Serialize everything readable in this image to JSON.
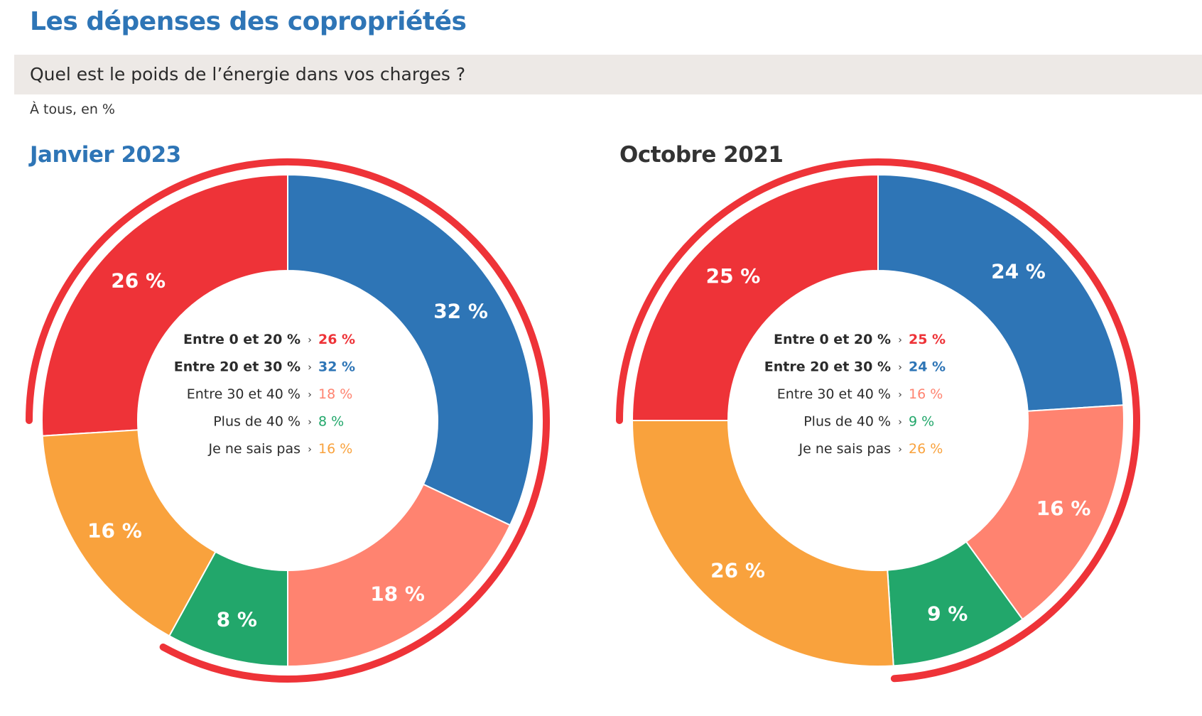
{
  "page": {
    "title": "Les dépenses des copropriétés",
    "question": "Quel est le poids de l’énergie dans vos charges ?",
    "base_note": "À tous, en %"
  },
  "colors": {
    "accent_blue": "#2e75b6",
    "highlight_ring": "#ee3338",
    "band": "#ede9e6"
  },
  "chart_data": [
    {
      "type": "donut",
      "title": "Janvier 2023",
      "unit": "%",
      "categories": [
        "Entre 0 et 20 %",
        "Entre 20 et 30 %",
        "Entre 30 et 40 %",
        "Plus de 40 %",
        "Je ne sais pas"
      ],
      "values": [
        26,
        32,
        18,
        8,
        16
      ],
      "labels": [
        "26 %",
        "32 %",
        "18 %",
        "8 %",
        "16 %"
      ],
      "colors": [
        "#ee3338",
        "#2e75b6",
        "#ff8370",
        "#22a76b",
        "#f9a23d"
      ],
      "highlighted_categories": [
        "Entre 0 et 20 %",
        "Entre 20 et 30 %"
      ]
    },
    {
      "type": "donut",
      "title": "Octobre 2021",
      "unit": "%",
      "categories": [
        "Entre 0 et 20 %",
        "Entre 20 et 30 %",
        "Entre 30 et 40 %",
        "Plus de 40 %",
        "Je ne sais pas"
      ],
      "values": [
        25,
        24,
        16,
        9,
        26
      ],
      "labels": [
        "25 %",
        "24 %",
        "16 %",
        "9 %",
        "26 %"
      ],
      "colors": [
        "#ee3338",
        "#2e75b6",
        "#ff8370",
        "#22a76b",
        "#f9a23d"
      ],
      "highlighted_categories": [
        "Entre 0 et 20 %",
        "Entre 20 et 30 %"
      ]
    }
  ]
}
